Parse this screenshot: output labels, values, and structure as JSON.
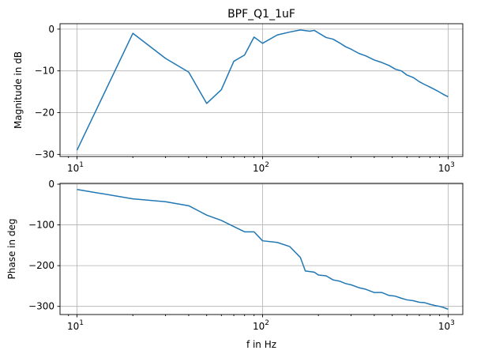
{
  "chart_data": [
    {
      "type": "line",
      "title": "BPF_Q1_1uF",
      "xlabel": "",
      "ylabel": "Magnitude in dB",
      "xscale": "log",
      "xlim": [
        8.1,
        1200
      ],
      "ylim": [
        -30.5,
        1.3
      ],
      "grid": true,
      "x_tick_labels": [
        {
          "value": 10,
          "base": "10",
          "exp": "1"
        },
        {
          "value": 100,
          "base": "10",
          "exp": "2"
        },
        {
          "value": 1000,
          "base": "10",
          "exp": "3"
        }
      ],
      "y_ticks": [
        0,
        -10,
        -20,
        -30
      ],
      "y_tick_labels": [
        "0",
        "−10",
        "−20",
        "−30"
      ],
      "color": "#1f77b4",
      "series": [
        {
          "x": [
            10,
            20,
            30,
            40,
            50,
            60,
            70,
            80,
            90,
            100,
            120,
            140,
            160,
            180,
            190,
            200,
            220,
            240,
            260,
            280,
            300,
            330,
            360,
            400,
            440,
            480,
            520,
            560,
            600,
            650,
            700,
            750,
            800,
            850,
            900,
            950,
            1000
          ],
          "y": [
            -29,
            -1,
            -7,
            -10.3,
            -17.8,
            -14.5,
            -7.7,
            -6.2,
            -1.9,
            -3.4,
            -1.4,
            -0.7,
            -0.2,
            -0.5,
            -0.3,
            -0.9,
            -2.0,
            -2.4,
            -3.3,
            -4.2,
            -4.8,
            -5.8,
            -6.4,
            -7.4,
            -8.0,
            -8.7,
            -9.6,
            -10.0,
            -11.0,
            -11.6,
            -12.6,
            -13.3,
            -13.9,
            -14.5,
            -15.1,
            -15.7,
            -16.2
          ]
        }
      ]
    },
    {
      "type": "line",
      "title": "",
      "xlabel": "f in Hz",
      "ylabel": "Phase in deg",
      "xscale": "log",
      "xlim": [
        8.1,
        1200
      ],
      "ylim": [
        -320,
        2
      ],
      "grid": true,
      "x_tick_labels": [
        {
          "value": 10,
          "base": "10",
          "exp": "1"
        },
        {
          "value": 100,
          "base": "10",
          "exp": "2"
        },
        {
          "value": 1000,
          "base": "10",
          "exp": "3"
        }
      ],
      "y_ticks": [
        0,
        -100,
        -200,
        -300
      ],
      "y_tick_labels": [
        "0",
        "−100",
        "−200",
        "−300"
      ],
      "color": "#1f77b4",
      "series": [
        {
          "x": [
            10,
            20,
            30,
            40,
            50,
            60,
            70,
            80,
            90,
            100,
            120,
            140,
            160,
            170,
            190,
            200,
            220,
            240,
            260,
            280,
            300,
            330,
            360,
            400,
            440,
            480,
            520,
            560,
            600,
            650,
            700,
            750,
            800,
            850,
            900,
            950,
            1000
          ],
          "y": [
            -13,
            -36,
            -43,
            -53,
            -76,
            -89,
            -104,
            -117,
            -117,
            -139,
            -143,
            -153,
            -180,
            -213,
            -216,
            -223,
            -225,
            -235,
            -238,
            -244,
            -247,
            -254,
            -258,
            -266,
            -266,
            -273,
            -275,
            -280,
            -284,
            -286,
            -290,
            -291,
            -295,
            -298,
            -300,
            -303,
            -307
          ]
        }
      ]
    }
  ]
}
